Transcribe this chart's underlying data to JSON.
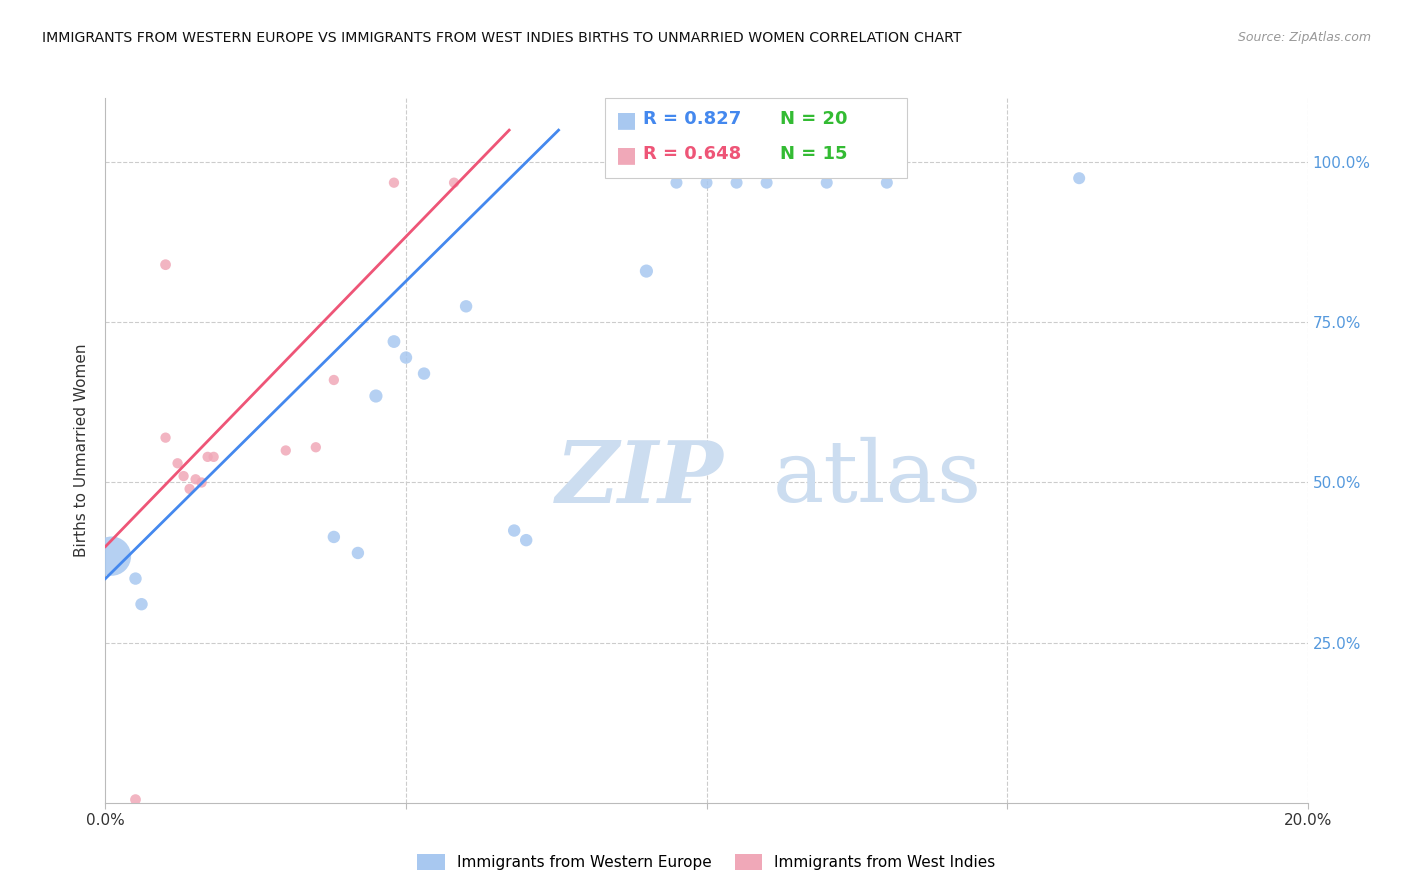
{
  "title": "IMMIGRANTS FROM WESTERN EUROPE VS IMMIGRANTS FROM WEST INDIES BIRTHS TO UNMARRIED WOMEN CORRELATION CHART",
  "source": "Source: ZipAtlas.com",
  "ylabel": "Births to Unmarried Women",
  "right_yaxis_color": "#5599dd",
  "blue_R": 0.827,
  "blue_N": 20,
  "pink_R": 0.648,
  "pink_N": 15,
  "blue_color": "#a8c8f0",
  "pink_color": "#f0a8b8",
  "blue_line_color": "#4488ee",
  "pink_line_color": "#ee5577",
  "blue_label": "Immigrants from Western Europe",
  "pink_label": "Immigrants from West Indies",
  "legend_R_blue_color": "#4488ee",
  "legend_R_pink_color": "#ee5577",
  "legend_N_color": "#33bb33",
  "watermark_zip": "ZIP",
  "watermark_atlas": "atlas",
  "watermark_color": "#ccddf0",
  "blue_points": [
    [
      0.001,
      0.385,
      800
    ],
    [
      0.005,
      0.35,
      80
    ],
    [
      0.006,
      0.31,
      80
    ],
    [
      0.038,
      0.415,
      80
    ],
    [
      0.042,
      0.39,
      80
    ],
    [
      0.045,
      0.635,
      90
    ],
    [
      0.048,
      0.72,
      85
    ],
    [
      0.05,
      0.695,
      80
    ],
    [
      0.053,
      0.67,
      80
    ],
    [
      0.06,
      0.775,
      80
    ],
    [
      0.068,
      0.425,
      80
    ],
    [
      0.07,
      0.41,
      80
    ],
    [
      0.09,
      0.83,
      90
    ],
    [
      0.095,
      0.968,
      75
    ],
    [
      0.1,
      0.968,
      75
    ],
    [
      0.105,
      0.968,
      75
    ],
    [
      0.11,
      0.968,
      75
    ],
    [
      0.12,
      0.968,
      75
    ],
    [
      0.13,
      0.968,
      75
    ],
    [
      0.162,
      0.975,
      75
    ]
  ],
  "pink_points": [
    [
      0.005,
      0.005,
      60
    ],
    [
      0.01,
      0.84,
      60
    ],
    [
      0.01,
      0.57,
      55
    ],
    [
      0.012,
      0.53,
      55
    ],
    [
      0.013,
      0.51,
      55
    ],
    [
      0.014,
      0.49,
      55
    ],
    [
      0.015,
      0.505,
      55
    ],
    [
      0.016,
      0.5,
      55
    ],
    [
      0.017,
      0.54,
      55
    ],
    [
      0.018,
      0.54,
      55
    ],
    [
      0.03,
      0.55,
      55
    ],
    [
      0.035,
      0.555,
      55
    ],
    [
      0.038,
      0.66,
      55
    ],
    [
      0.048,
      0.968,
      55
    ],
    [
      0.058,
      0.968,
      55
    ]
  ],
  "blue_trend_x": [
    0.0,
    0.07
  ],
  "blue_trend_y": [
    0.35,
    1.0
  ],
  "pink_trend_x": [
    0.0,
    0.062
  ],
  "pink_trend_y": [
    0.4,
    1.0
  ],
  "grid_color": "#cccccc",
  "background_color": "#ffffff",
  "xlim": [
    0.0,
    0.2
  ],
  "ylim": [
    0.0,
    1.1
  ]
}
